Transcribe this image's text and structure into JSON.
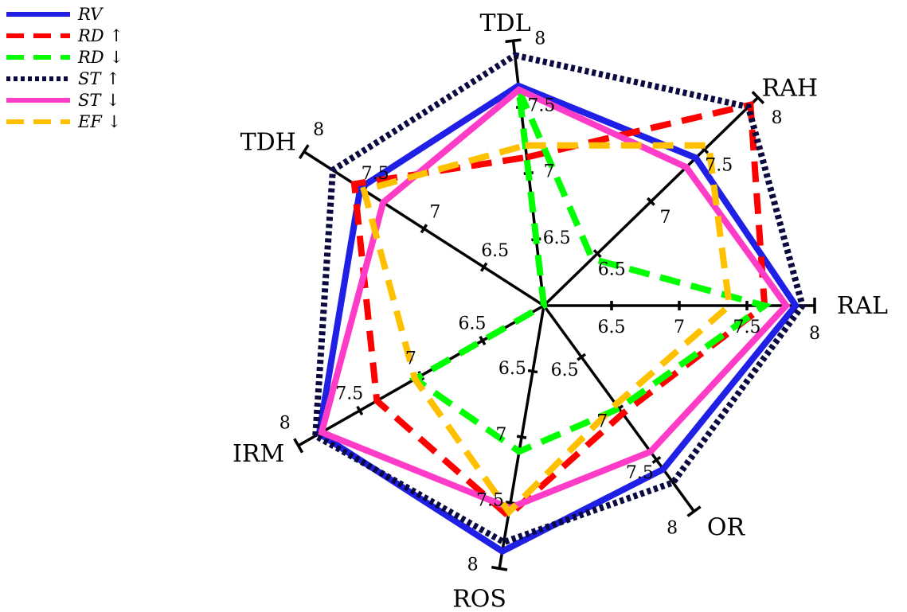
{
  "chart_data": {
    "type": "radar",
    "title": "",
    "axes": [
      "TDL",
      "RAH",
      "RAL",
      "OR",
      "ROS",
      "IRM",
      "TDH"
    ],
    "range": [
      6,
      8
    ],
    "tick_values": [
      6.5,
      7,
      7.5,
      8
    ],
    "tick_labels": [
      "6.5",
      "7",
      "7.5",
      "8"
    ],
    "grid": false,
    "legend_position": "top-left",
    "series": [
      {
        "name": "RV",
        "label": "RV",
        "arrow": "",
        "color": "#1f1fe6",
        "style": "solid",
        "values": [
          7.66,
          7.42,
          7.86,
          7.59,
          7.87,
          7.83,
          7.53
        ]
      },
      {
        "name": "RD up",
        "label": "RD",
        "arrow": "↑",
        "color": "#ff0000",
        "style": "dashed",
        "values": [
          7.12,
          7.93,
          7.63,
          7.05,
          7.6,
          7.36,
          7.58
        ]
      },
      {
        "name": "RD down",
        "label": "RD",
        "arrow": "↓",
        "color": "#00ff00",
        "style": "dashed",
        "values": [
          7.63,
          6.45,
          7.63,
          7.0,
          7.11,
          7.05,
          6.0
        ]
      },
      {
        "name": "ST up",
        "label": "ST",
        "arrow": "↑",
        "color": "#0a0a40",
        "style": "dotted",
        "values": [
          7.89,
          7.91,
          7.91,
          7.72,
          7.8,
          7.86,
          7.76
        ]
      },
      {
        "name": "ST down",
        "label": "ST",
        "arrow": "↓",
        "color": "#ff3cc8",
        "style": "solid",
        "values": [
          7.63,
          7.33,
          7.79,
          7.42,
          7.54,
          7.81,
          7.34
        ]
      },
      {
        "name": "EF down",
        "label": "EF",
        "arrow": "↓",
        "color": "#ffc000",
        "style": "dashed",
        "values": [
          7.21,
          7.54,
          7.37,
          6.96,
          7.57,
          7.05,
          7.5
        ]
      }
    ]
  }
}
